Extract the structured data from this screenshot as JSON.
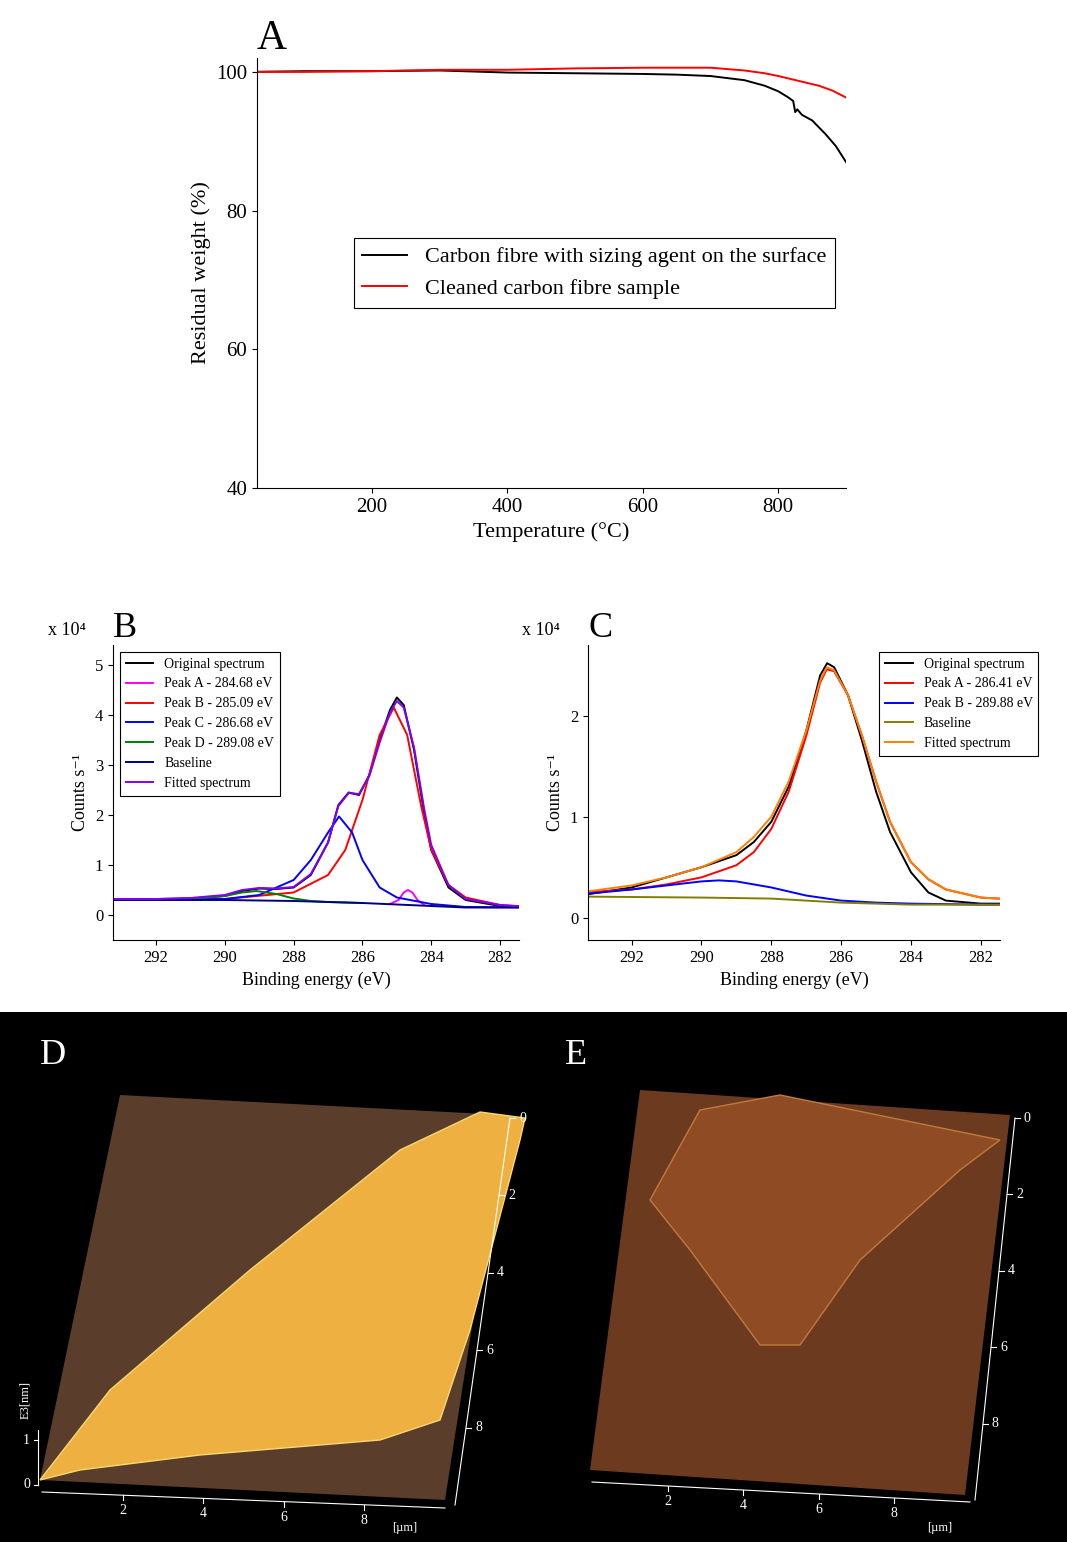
{
  "chart_data": [
    {
      "type": "line",
      "title": "A",
      "x_label": "Temperature (°C)",
      "y_label": "Residual weight (%)",
      "xlim": [
        30,
        900
      ],
      "xticks": [
        200,
        400,
        600,
        800
      ],
      "ylim": [
        40,
        102
      ],
      "yticks": [
        40,
        60,
        80,
        100
      ],
      "legend": "center right",
      "series": [
        {
          "name": "Carbon fibre with sizing agent on the surface",
          "color": "#000000",
          "x": [
            25,
            100,
            200,
            300,
            400,
            500,
            600,
            650,
            700,
            750,
            780,
            800,
            815,
            822,
            825,
            828,
            835,
            850,
            870,
            885,
            900
          ],
          "values": [
            100,
            100.1,
            100.1,
            100.2,
            99.9,
            99.8,
            99.7,
            99.6,
            99.4,
            98.8,
            98.0,
            97.2,
            96.3,
            95.8,
            94.2,
            94.6,
            93.8,
            93.0,
            91.0,
            89.3,
            87.0
          ]
        },
        {
          "name": "Cleaned carbon fibre sample",
          "color": "#ff0000",
          "x": [
            25,
            100,
            200,
            300,
            400,
            500,
            600,
            650,
            700,
            750,
            780,
            800,
            830,
            860,
            880,
            900
          ],
          "values": [
            100,
            100.0,
            100.1,
            100.3,
            100.3,
            100.5,
            100.6,
            100.6,
            100.6,
            100.2,
            99.8,
            99.4,
            98.7,
            98.0,
            97.3,
            96.3
          ]
        }
      ]
    },
    {
      "type": "line",
      "title": "B",
      "x_label": "Binding energy (eV)",
      "y_label": "Counts s⁻¹",
      "annotations": [
        "x 10⁴"
      ],
      "xlim": [
        293.25,
        281.45
      ],
      "xticks": [
        292,
        290,
        288,
        286,
        284,
        282
      ],
      "ylim": [
        -0.5,
        5.4
      ],
      "yticks": [
        0,
        1,
        2,
        3,
        4,
        5
      ],
      "legend": "upper left",
      "series": [
        {
          "name": "Original spectrum",
          "color": "#000000",
          "x": [
            293.5,
            292,
            291,
            290,
            289.5,
            289,
            288.5,
            288,
            287.5,
            287,
            286.7,
            286.4,
            286.1,
            285.8,
            285.5,
            285.2,
            285.0,
            284.8,
            284.5,
            284.2,
            284.0,
            283.5,
            283.0,
            282.0,
            281.0
          ],
          "values": [
            0.32,
            0.32,
            0.33,
            0.38,
            0.48,
            0.53,
            0.52,
            0.55,
            0.8,
            1.45,
            2.2,
            2.45,
            2.4,
            2.8,
            3.5,
            4.1,
            4.35,
            4.2,
            3.3,
            2.0,
            1.3,
            0.55,
            0.3,
            0.18,
            0.15
          ]
        },
        {
          "name": "Peak A - 284.68 eV",
          "color": "#ff00ff",
          "x": [
            285.2,
            284.95,
            284.8,
            284.68,
            284.55,
            284.4,
            284.2
          ],
          "values": [
            0.22,
            0.3,
            0.45,
            0.5,
            0.45,
            0.3,
            0.2
          ]
        },
        {
          "name": "Peak B - 285.09 eV",
          "color": "#ff0000",
          "x": [
            293.5,
            290,
            288,
            287,
            286.5,
            286,
            285.5,
            285.09,
            284.7,
            284.3,
            284,
            283.5,
            283,
            282,
            281
          ],
          "values": [
            0.3,
            0.32,
            0.45,
            0.8,
            1.3,
            2.3,
            3.6,
            4.15,
            3.6,
            2.2,
            1.3,
            0.6,
            0.35,
            0.2,
            0.15
          ]
        },
        {
          "name": "Peak C - 286.68 eV",
          "color": "#0000ff",
          "x": [
            293.5,
            290,
            289,
            288,
            287.5,
            287,
            286.68,
            286.3,
            286,
            285.5,
            285,
            284,
            283,
            281
          ],
          "values": [
            0.3,
            0.32,
            0.4,
            0.7,
            1.1,
            1.65,
            1.97,
            1.65,
            1.1,
            0.55,
            0.35,
            0.22,
            0.16,
            0.15
          ]
        },
        {
          "name": "Peak D - 289.08 eV",
          "color": "#008000",
          "x": [
            293.5,
            291,
            290,
            289.5,
            289.08,
            288.5,
            288,
            287.5,
            287,
            286
          ],
          "values": [
            0.3,
            0.32,
            0.38,
            0.45,
            0.48,
            0.42,
            0.33,
            0.28,
            0.26,
            0.24
          ]
        },
        {
          "name": "Baseline",
          "color": "#000080",
          "x": [
            293.5,
            290,
            288,
            286,
            284,
            283,
            281
          ],
          "values": [
            0.3,
            0.3,
            0.28,
            0.24,
            0.18,
            0.15,
            0.15
          ]
        },
        {
          "name": "Fitted spectrum",
          "color": "#8000ff",
          "x": [
            293.5,
            292,
            291,
            290,
            289.5,
            289,
            288.5,
            288,
            287.5,
            287,
            286.7,
            286.4,
            286.1,
            285.8,
            285.5,
            285.2,
            285.0,
            284.8,
            284.5,
            284.2,
            284.0,
            283.5,
            283.0,
            282.0,
            281.0
          ],
          "values": [
            0.32,
            0.32,
            0.34,
            0.4,
            0.5,
            0.54,
            0.53,
            0.56,
            0.82,
            1.45,
            2.18,
            2.44,
            2.42,
            2.78,
            3.45,
            4.05,
            4.28,
            4.15,
            3.35,
            2.1,
            1.4,
            0.6,
            0.32,
            0.2,
            0.16
          ]
        }
      ]
    },
    {
      "type": "line",
      "title": "C",
      "x_label": "Binding energy (eV)",
      "y_label": "Counts s⁻¹",
      "annotations": [
        "x 10⁴"
      ],
      "xlim": [
        293.25,
        281.45
      ],
      "xticks": [
        292,
        290,
        288,
        286,
        284,
        282
      ],
      "ylim": [
        -0.22,
        2.7
      ],
      "yticks": [
        0,
        1,
        2
      ],
      "legend": "upper right",
      "series": [
        {
          "name": "Original spectrum",
          "color": "#000000",
          "x": [
            293.5,
            292,
            291,
            290,
            289,
            288.5,
            288,
            287.5,
            287,
            286.6,
            286.4,
            286.2,
            285.8,
            285.4,
            285,
            284.6,
            284,
            283.5,
            283,
            282,
            281
          ],
          "values": [
            0.22,
            0.3,
            0.4,
            0.5,
            0.62,
            0.75,
            0.95,
            1.3,
            1.85,
            2.4,
            2.52,
            2.48,
            2.2,
            1.75,
            1.25,
            0.85,
            0.45,
            0.25,
            0.17,
            0.14,
            0.14
          ]
        },
        {
          "name": "Peak A - 286.41 eV",
          "color": "#ff0000",
          "x": [
            293.5,
            292,
            291,
            290,
            289,
            288.5,
            288,
            287.5,
            287,
            286.6,
            286.41,
            286.2,
            285.8,
            285.4,
            285,
            284.6,
            284,
            283.5,
            283,
            282,
            281
          ],
          "values": [
            0.25,
            0.28,
            0.33,
            0.4,
            0.52,
            0.65,
            0.88,
            1.25,
            1.8,
            2.33,
            2.46,
            2.44,
            2.2,
            1.8,
            1.35,
            0.95,
            0.55,
            0.38,
            0.28,
            0.2,
            0.18
          ]
        },
        {
          "name": "Peak B - 289.88 eV",
          "color": "#0000ff",
          "x": [
            293.5,
            292,
            291,
            290,
            289.5,
            289,
            288,
            287,
            286,
            285,
            284,
            282,
            281
          ],
          "values": [
            0.23,
            0.28,
            0.32,
            0.36,
            0.37,
            0.36,
            0.3,
            0.22,
            0.17,
            0.15,
            0.14,
            0.13,
            0.13
          ]
        },
        {
          "name": "Baseline",
          "color": "#808000",
          "x": [
            293.5,
            290,
            288,
            286,
            284,
            281
          ],
          "values": [
            0.21,
            0.2,
            0.19,
            0.15,
            0.13,
            0.13
          ]
        },
        {
          "name": "Fitted spectrum",
          "color": "#ff8000",
          "x": [
            293.5,
            292,
            291,
            290,
            289,
            288.5,
            288,
            287.5,
            287,
            286.6,
            286.41,
            286.2,
            285.8,
            285.4,
            285,
            284.6,
            284,
            283.5,
            283,
            282,
            281
          ],
          "values": [
            0.25,
            0.32,
            0.4,
            0.5,
            0.65,
            0.8,
            1.0,
            1.35,
            1.85,
            2.35,
            2.48,
            2.45,
            2.2,
            1.8,
            1.35,
            0.95,
            0.55,
            0.38,
            0.28,
            0.2,
            0.18
          ]
        }
      ]
    },
    {
      "type": "image",
      "title": "D",
      "unit_label": "[µm]",
      "xlim": [
        0,
        10
      ],
      "xticks": [
        2,
        4,
        6,
        8
      ],
      "ylim": [
        0,
        10
      ],
      "yticks": [
        0,
        2,
        4,
        6,
        8
      ],
      "z_label": "E3[nm]",
      "zticks": [
        0,
        1
      ]
    },
    {
      "type": "image",
      "title": "E",
      "unit_label": "[µm]",
      "xlim": [
        0,
        10
      ],
      "xticks": [
        2,
        4,
        6,
        8
      ],
      "ylim": [
        0,
        10
      ],
      "yticks": [
        0,
        2,
        4,
        6,
        8
      ]
    }
  ]
}
